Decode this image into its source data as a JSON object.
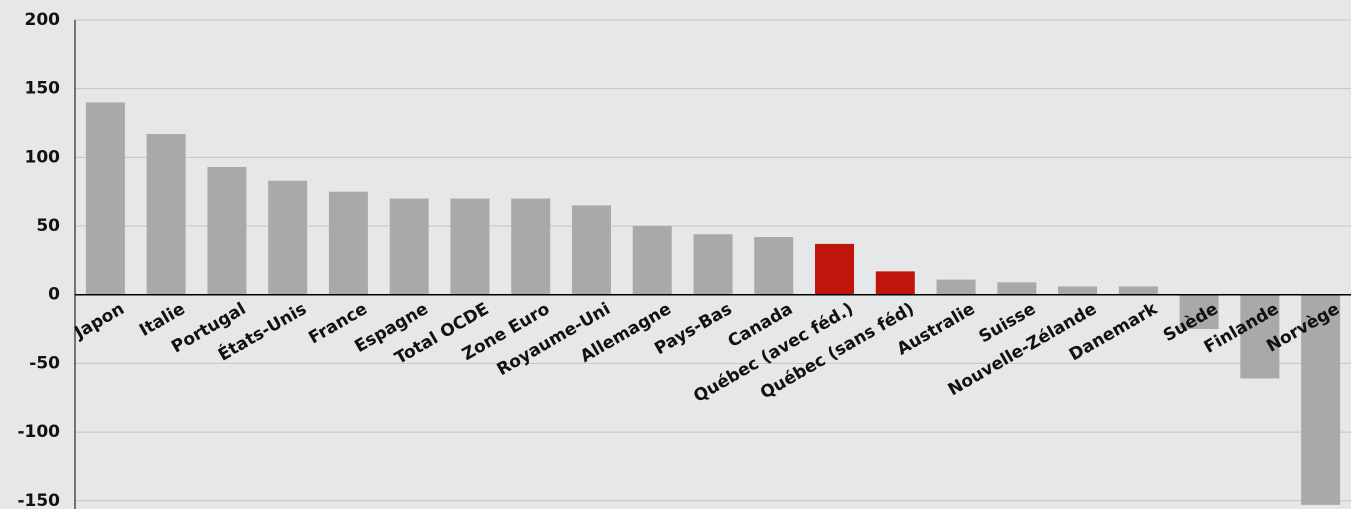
{
  "chart_data": {
    "type": "bar",
    "categories": [
      "Japon",
      "Italie",
      "Portugal",
      "États-Unis",
      "France",
      "Espagne",
      "Total OCDE",
      "Zone Euro",
      "Royaume-Uni",
      "Allemagne",
      "Pays-Bas",
      "Canada",
      "Québec (avec féd.)",
      "Québec (sans féd)",
      "Australie",
      "Suisse",
      "Nouvelle-Zélande",
      "Danemark",
      "Suède",
      "Finlande",
      "Norvège"
    ],
    "values": [
      140,
      117,
      93,
      83,
      75,
      70,
      70,
      70,
      65,
      50,
      44,
      42,
      37,
      17,
      11,
      9,
      6,
      6,
      -25,
      -61,
      -153
    ],
    "colors": [
      "#a9a9a9",
      "#a9a9a9",
      "#a9a9a9",
      "#a9a9a9",
      "#a9a9a9",
      "#a9a9a9",
      "#a9a9a9",
      "#a9a9a9",
      "#a9a9a9",
      "#a9a9a9",
      "#a9a9a9",
      "#a9a9a9",
      "#c0150b",
      "#c0150b",
      "#a9a9a9",
      "#a9a9a9",
      "#a9a9a9",
      "#a9a9a9",
      "#a9a9a9",
      "#a9a9a9",
      "#a9a9a9"
    ],
    "ylim": [
      -156,
      200
    ],
    "yticks": [
      -150,
      -100,
      -50,
      0,
      50,
      100,
      150,
      200
    ],
    "grid": true
  }
}
